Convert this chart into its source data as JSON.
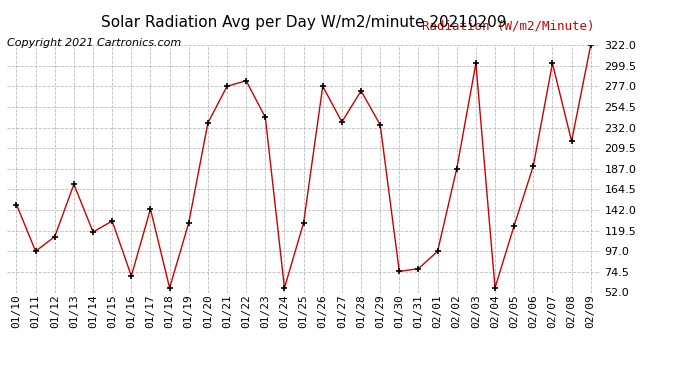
{
  "title": "Solar Radiation Avg per Day W/m2/minute 20210209",
  "copyright": "Copyright 2021 Cartronics.com",
  "legend_label": "Radiation (W/m2/Minute)",
  "dates": [
    "01/10",
    "01/11",
    "01/12",
    "01/13",
    "01/14",
    "01/15",
    "01/16",
    "01/17",
    "01/18",
    "01/19",
    "01/20",
    "01/21",
    "01/22",
    "01/23",
    "01/24",
    "01/25",
    "01/26",
    "01/27",
    "01/28",
    "01/29",
    "01/30",
    "01/31",
    "02/01",
    "02/02",
    "02/03",
    "02/04",
    "02/05",
    "02/06",
    "02/07",
    "02/08",
    "02/09"
  ],
  "values": [
    148,
    97,
    113,
    170,
    118,
    130,
    70,
    143,
    57,
    128,
    237,
    277,
    283,
    243,
    57,
    128,
    277,
    238,
    272,
    235,
    75,
    78,
    97,
    187,
    302,
    57,
    125,
    190,
    302,
    217,
    322
  ],
  "line_color": "#cc0000",
  "marker_color": "#000000",
  "background_color": "#ffffff",
  "grid_color": "#bbbbbb",
  "yticks": [
    52.0,
    74.5,
    97.0,
    119.5,
    142.0,
    164.5,
    187.0,
    209.5,
    232.0,
    254.5,
    277.0,
    299.5,
    322.0
  ],
  "ylim": [
    52.0,
    322.0
  ],
  "title_fontsize": 11,
  "legend_fontsize": 9,
  "copyright_fontsize": 8,
  "tick_fontsize": 8
}
